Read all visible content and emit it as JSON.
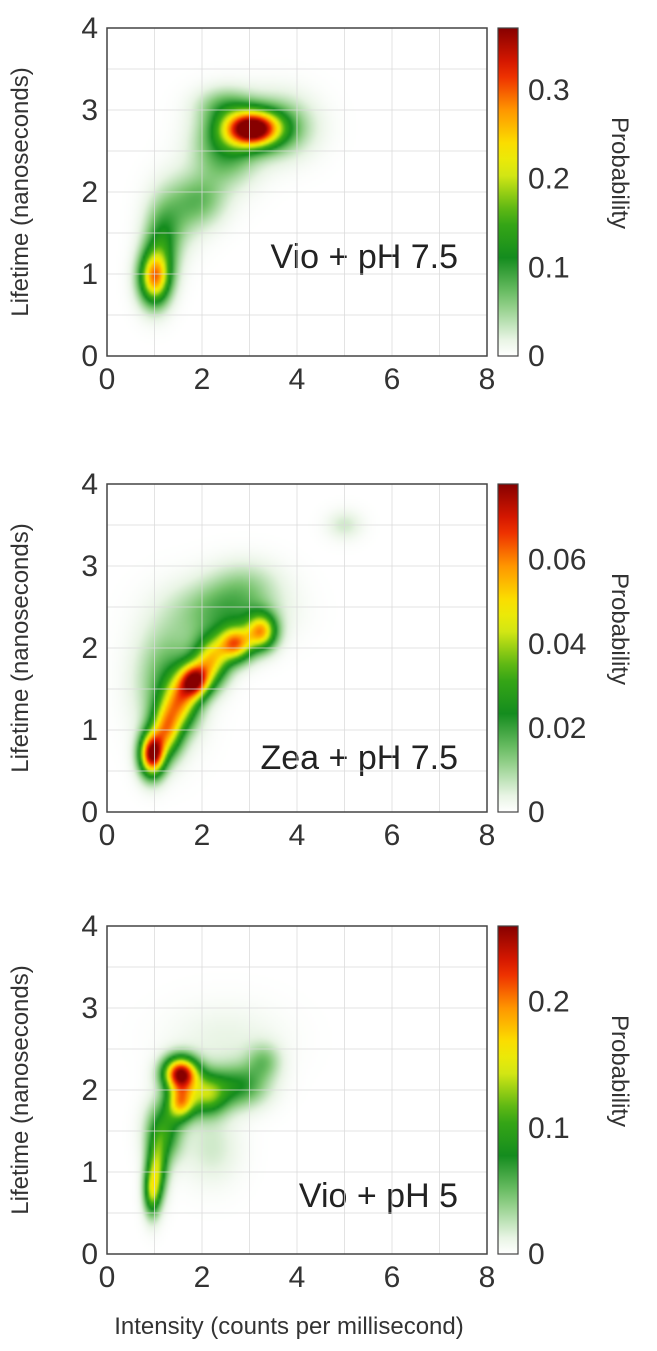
{
  "chart_data": [
    {
      "type": "heatmap",
      "annotation": "Vio + pH 7.5",
      "ylabel": "Lifetime (nanoseconds)",
      "xlabel": "",
      "xlim": [
        0,
        8
      ],
      "ylim": [
        0,
        4
      ],
      "xticks": [
        "0",
        "2",
        "4",
        "6",
        "8"
      ],
      "yticks": [
        "0",
        "1",
        "2",
        "3",
        "4"
      ],
      "grid": true,
      "colorbar": {
        "label": "Probability",
        "range": [
          0,
          0.37
        ],
        "ticks": [
          {
            "value": 0,
            "label": "0"
          },
          {
            "value": 0.1,
            "label": "0.1"
          },
          {
            "value": 0.2,
            "label": "0.2"
          },
          {
            "value": 0.3,
            "label": "0.3"
          }
        ]
      },
      "clusters": [
        {
          "x": 1.0,
          "y": 0.95,
          "sx": 0.22,
          "sy": 0.22,
          "p": 0.26
        },
        {
          "x": 1.15,
          "y": 1.35,
          "sx": 0.25,
          "sy": 0.3,
          "p": 0.1
        },
        {
          "x": 1.45,
          "y": 1.75,
          "sx": 0.35,
          "sy": 0.3,
          "p": 0.05
        },
        {
          "x": 2.0,
          "y": 1.9,
          "sx": 0.35,
          "sy": 0.22,
          "p": 0.06
        },
        {
          "x": 2.5,
          "y": 2.55,
          "sx": 0.45,
          "sy": 0.3,
          "p": 0.1
        },
        {
          "x": 3.05,
          "y": 2.77,
          "sx": 0.4,
          "sy": 0.15,
          "p": 0.37
        },
        {
          "x": 3.6,
          "y": 2.8,
          "sx": 0.5,
          "sy": 0.25,
          "p": 0.08
        },
        {
          "x": 2.5,
          "y": 3.05,
          "sx": 0.4,
          "sy": 0.15,
          "p": 0.06
        }
      ]
    },
    {
      "type": "heatmap",
      "annotation": "Zea + pH 7.5",
      "ylabel": "Lifetime (nanoseconds)",
      "xlabel": "",
      "xlim": [
        0,
        8
      ],
      "ylim": [
        0,
        4
      ],
      "xticks": [
        "0",
        "2",
        "4",
        "6",
        "8"
      ],
      "yticks": [
        "0",
        "1",
        "2",
        "3",
        "4"
      ],
      "grid": true,
      "colorbar": {
        "label": "Probability",
        "range": [
          0,
          0.078
        ],
        "ticks": [
          {
            "value": 0,
            "label": "0"
          },
          {
            "value": 0.02,
            "label": "0.02"
          },
          {
            "value": 0.04,
            "label": "0.04"
          },
          {
            "value": 0.06,
            "label": "0.06"
          }
        ]
      },
      "clusters": [
        {
          "x": 0.95,
          "y": 0.7,
          "sx": 0.18,
          "sy": 0.18,
          "p": 0.075
        },
        {
          "x": 1.25,
          "y": 1.0,
          "sx": 0.22,
          "sy": 0.22,
          "p": 0.045
        },
        {
          "x": 1.55,
          "y": 1.35,
          "sx": 0.25,
          "sy": 0.22,
          "p": 0.04
        },
        {
          "x": 1.85,
          "y": 1.6,
          "sx": 0.22,
          "sy": 0.15,
          "p": 0.06
        },
        {
          "x": 2.2,
          "y": 1.85,
          "sx": 0.25,
          "sy": 0.2,
          "p": 0.045
        },
        {
          "x": 2.7,
          "y": 2.05,
          "sx": 0.25,
          "sy": 0.15,
          "p": 0.055
        },
        {
          "x": 3.25,
          "y": 2.2,
          "sx": 0.22,
          "sy": 0.15,
          "p": 0.05
        },
        {
          "x": 2.5,
          "y": 2.45,
          "sx": 0.7,
          "sy": 0.25,
          "p": 0.018
        },
        {
          "x": 1.3,
          "y": 1.6,
          "sx": 0.45,
          "sy": 0.45,
          "p": 0.018
        },
        {
          "x": 5.0,
          "y": 3.5,
          "sx": 0.25,
          "sy": 0.12,
          "p": 0.006
        },
        {
          "x": 2.9,
          "y": 2.8,
          "sx": 0.5,
          "sy": 0.2,
          "p": 0.007
        }
      ]
    },
    {
      "type": "heatmap",
      "annotation": "Vio + pH 5",
      "ylabel": "Lifetime (nanoseconds)",
      "xlabel": "Intensity (counts per millisecond)",
      "xlim": [
        0,
        8
      ],
      "ylim": [
        0,
        4
      ],
      "xticks": [
        "0",
        "2",
        "4",
        "6",
        "8"
      ],
      "yticks": [
        "0",
        "1",
        "2",
        "3",
        "4"
      ],
      "grid": true,
      "colorbar": {
        "label": "Probability",
        "range": [
          0,
          0.26
        ],
        "ticks": [
          {
            "value": 0,
            "label": "0"
          },
          {
            "value": 0.1,
            "label": "0.1"
          },
          {
            "value": 0.2,
            "label": "0.2"
          }
        ]
      },
      "clusters": [
        {
          "x": 0.95,
          "y": 0.75,
          "sx": 0.12,
          "sy": 0.2,
          "p": 0.11
        },
        {
          "x": 1.05,
          "y": 1.05,
          "sx": 0.15,
          "sy": 0.25,
          "p": 0.11
        },
        {
          "x": 1.2,
          "y": 1.5,
          "sx": 0.25,
          "sy": 0.25,
          "p": 0.09
        },
        {
          "x": 1.55,
          "y": 2.2,
          "sx": 0.25,
          "sy": 0.14,
          "p": 0.25
        },
        {
          "x": 1.55,
          "y": 1.85,
          "sx": 0.2,
          "sy": 0.15,
          "p": 0.16
        },
        {
          "x": 2.1,
          "y": 1.95,
          "sx": 0.3,
          "sy": 0.18,
          "p": 0.12
        },
        {
          "x": 2.8,
          "y": 2.05,
          "sx": 0.4,
          "sy": 0.18,
          "p": 0.07
        },
        {
          "x": 3.3,
          "y": 2.35,
          "sx": 0.25,
          "sy": 0.15,
          "p": 0.04
        },
        {
          "x": 2.2,
          "y": 1.3,
          "sx": 0.4,
          "sy": 0.3,
          "p": 0.02
        },
        {
          "x": 2.5,
          "y": 2.6,
          "sx": 0.8,
          "sy": 0.3,
          "p": 0.012
        }
      ]
    }
  ]
}
